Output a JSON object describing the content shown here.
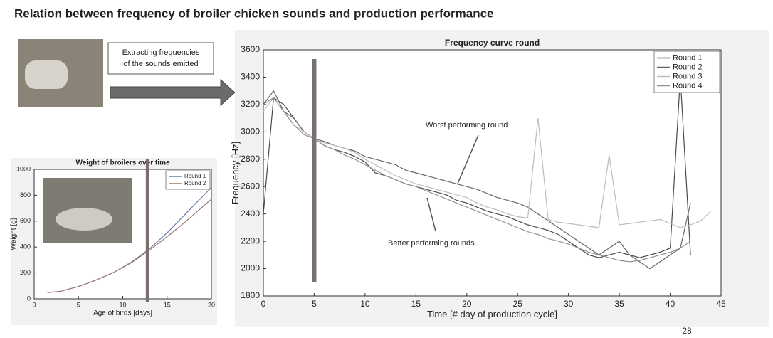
{
  "title": "Relation between frequency of broiler chicken sounds and production performance",
  "flow_label": [
    "Extracting frequencies",
    "of the sounds emitted"
  ],
  "page_number": "28",
  "chart_data": [
    {
      "type": "line",
      "title": "Weight of broilers over time",
      "x_label": "Age of birds [days]",
      "y_label": "Weight [g]",
      "x": [
        1.5,
        3,
        5,
        7,
        9,
        11,
        13,
        15,
        17,
        19,
        20
      ],
      "series": [
        {
          "name": "Round 1",
          "color": "#6f7fa0",
          "values": [
            48,
            58,
            95,
            145,
            205,
            285,
            385,
            510,
            650,
            790,
            860
          ]
        },
        {
          "name": "Round 2",
          "color": "#a07878",
          "values": [
            48,
            58,
            95,
            145,
            205,
            280,
            375,
            480,
            590,
            710,
            770
          ]
        }
      ],
      "xlim": [
        0,
        20
      ],
      "xticks": [
        0,
        5,
        10,
        15,
        20
      ],
      "ylim": [
        0,
        1000
      ],
      "yticks": [
        0,
        200,
        400,
        600,
        800,
        1000
      ],
      "vline": 12.8,
      "vline_color": "#7a6f6f",
      "legend": "upper right",
      "grid": false
    },
    {
      "type": "line",
      "title": "Frequency curve round",
      "x_label": "Time [# day of production cycle]",
      "y_label": "Frequency [Hz]",
      "x": [
        0,
        1,
        2,
        3,
        4,
        5,
        6,
        7,
        8,
        9,
        10,
        11,
        12,
        13,
        14,
        15,
        16,
        17,
        18,
        19,
        20,
        21,
        22,
        23,
        24,
        25,
        26,
        27,
        28,
        29,
        30,
        31,
        32,
        33,
        34,
        35,
        36,
        37,
        38,
        39,
        40,
        41,
        42,
        43,
        44
      ],
      "series": [
        {
          "name": "Round 1",
          "color": "#4a4a4a",
          "values": [
            2400,
            3250,
            3200,
            3100,
            3000,
            2950,
            2900,
            2870,
            2850,
            2820,
            2780,
            2700,
            2680,
            2650,
            2620,
            2600,
            2580,
            2560,
            2540,
            2500,
            2480,
            2450,
            2420,
            2400,
            2380,
            2350,
            2320,
            2300,
            2280,
            2250,
            2200,
            2150,
            2100,
            2080,
            2100,
            2120,
            2100,
            2080,
            2100,
            2120,
            2150,
            3400,
            2100,
            null,
            null
          ]
        },
        {
          "name": "Round 2",
          "color": "#666666",
          "values": [
            3200,
            3300,
            3150,
            3100,
            3000,
            2950,
            2930,
            2900,
            2880,
            2860,
            2820,
            2800,
            2780,
            2760,
            2720,
            2700,
            2680,
            2660,
            2640,
            2620,
            2600,
            2580,
            2550,
            2520,
            2500,
            2480,
            2450,
            2400,
            2350,
            2300,
            2250,
            2200,
            2150,
            2100,
            2150,
            2200,
            2100,
            2050,
            2000,
            2050,
            2100,
            2150,
            2480,
            null,
            null
          ]
        },
        {
          "name": "Round 3",
          "color": "#bdbdbd",
          "values": [
            3150,
            3250,
            3150,
            3050,
            3000,
            2950,
            2920,
            2900,
            2880,
            2850,
            2800,
            2760,
            2720,
            2680,
            2650,
            2620,
            2600,
            2580,
            2560,
            2540,
            2520,
            2480,
            2450,
            2430,
            2400,
            2380,
            2370,
            3100,
            2360,
            2340,
            2330,
            2320,
            2310,
            2300,
            2830,
            2320,
            2330,
            2340,
            2350,
            2360,
            2330,
            2300,
            2320,
            2350,
            2420
          ]
        },
        {
          "name": "Round 4",
          "color": "#939393",
          "values": [
            3200,
            3250,
            3150,
            3050,
            2980,
            2950,
            2900,
            2870,
            2830,
            2800,
            2760,
            2720,
            2680,
            2650,
            2620,
            2600,
            2570,
            2540,
            2510,
            2480,
            2450,
            2420,
            2390,
            2360,
            2330,
            2300,
            2270,
            2250,
            2220,
            2200,
            2180,
            2150,
            2120,
            2100,
            2080,
            2060,
            2050,
            2060,
            2080,
            2100,
            2120,
            2150,
            2200,
            null,
            null
          ]
        }
      ],
      "xlim": [
        0,
        45
      ],
      "xticks": [
        0,
        5,
        10,
        15,
        20,
        25,
        30,
        35,
        40,
        45
      ],
      "ylim": [
        1800,
        3600
      ],
      "yticks": [
        1800,
        2000,
        2200,
        2400,
        2600,
        2800,
        3000,
        3200,
        3400,
        3600
      ],
      "vline": 5,
      "vline_color": "#7a6f6f",
      "legend": "upper right",
      "grid": false,
      "annotations": [
        "Worst performing round",
        "Better performing rounds"
      ]
    }
  ]
}
